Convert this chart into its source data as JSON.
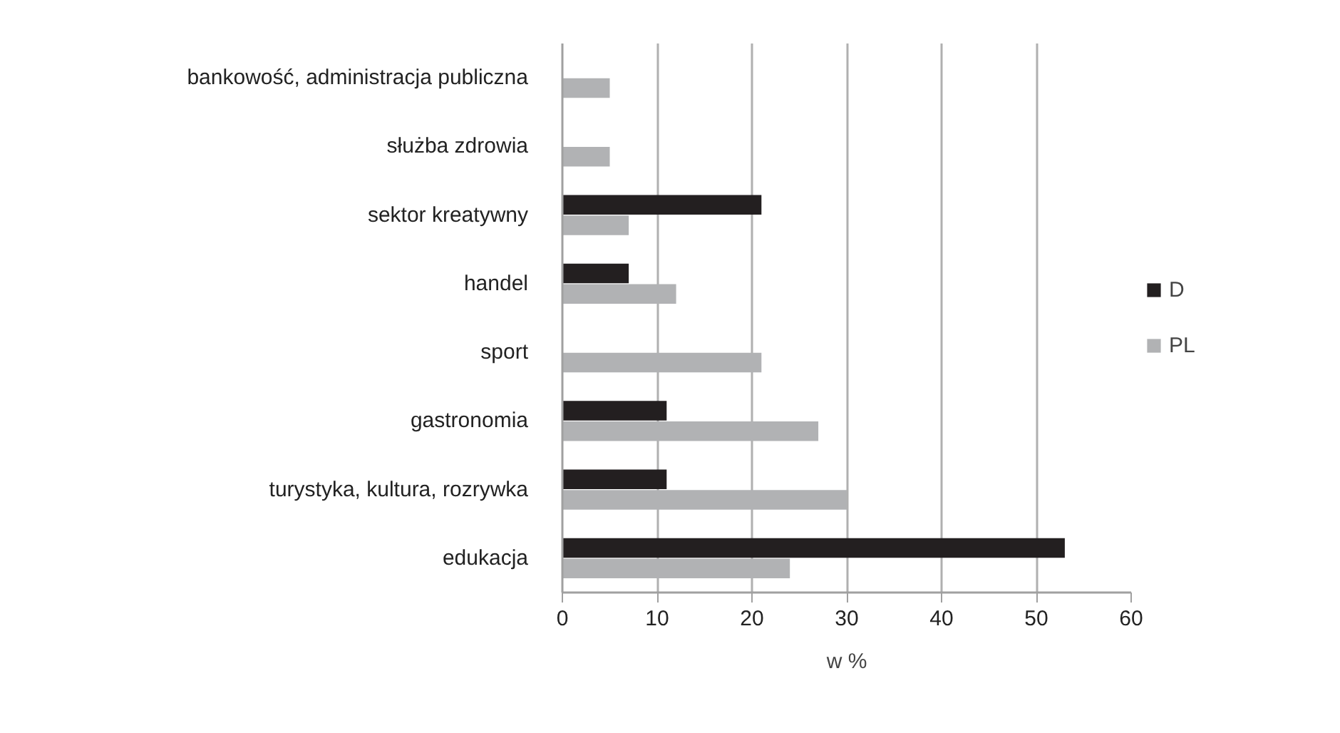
{
  "chart_data": {
    "type": "bar",
    "orientation": "horizontal",
    "xlabel": "w %",
    "categories": [
      "bankowość, administracja publiczna",
      "służba zdrowia",
      "sektor kreatywny",
      "handel",
      "sport",
      "gastronomia",
      "turystyka, kultura, rozrywka",
      "edukacja"
    ],
    "series": [
      {
        "name": "D",
        "color": "#231f20",
        "values": [
          null,
          null,
          21,
          7,
          null,
          11,
          11,
          53
        ]
      },
      {
        "name": "PL",
        "color": "#b1b2b4",
        "values": [
          5,
          5,
          7,
          12,
          21,
          27,
          30,
          24
        ]
      }
    ],
    "xlim": [
      0,
      60
    ],
    "xticks": [
      0,
      10,
      20,
      30,
      40,
      50,
      60
    ],
    "grid": "x",
    "legend": "right"
  }
}
